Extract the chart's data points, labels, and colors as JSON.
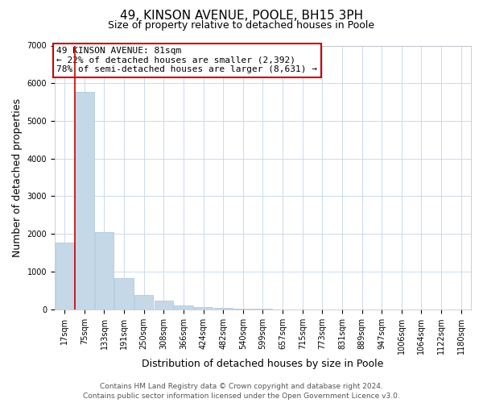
{
  "title": "49, KINSON AVENUE, POOLE, BH15 3PH",
  "subtitle": "Size of property relative to detached houses in Poole",
  "xlabel": "Distribution of detached houses by size in Poole",
  "ylabel": "Number of detached properties",
  "bar_labels": [
    "17sqm",
    "75sqm",
    "133sqm",
    "191sqm",
    "250sqm",
    "308sqm",
    "366sqm",
    "424sqm",
    "482sqm",
    "540sqm",
    "599sqm",
    "657sqm",
    "715sqm",
    "773sqm",
    "831sqm",
    "889sqm",
    "947sqm",
    "1006sqm",
    "1064sqm",
    "1122sqm",
    "1180sqm"
  ],
  "bar_heights": [
    1780,
    5760,
    2050,
    830,
    370,
    230,
    110,
    60,
    30,
    10,
    5,
    2,
    1,
    0,
    0,
    0,
    0,
    0,
    0,
    0,
    0
  ],
  "bar_color": "#c5d8e8",
  "bar_edge_color": "#a8c4d8",
  "vline_color": "#cc0000",
  "ylim": [
    0,
    7000
  ],
  "yticks": [
    0,
    1000,
    2000,
    3000,
    4000,
    5000,
    6000,
    7000
  ],
  "annotation_title": "49 KINSON AVENUE: 81sqm",
  "annotation_line1": "← 22% of detached houses are smaller (2,392)",
  "annotation_line2": "78% of semi-detached houses are larger (8,631) →",
  "annotation_box_color": "#ffffff",
  "annotation_box_edge": "#cc0000",
  "footer1": "Contains HM Land Registry data © Crown copyright and database right 2024.",
  "footer2": "Contains public sector information licensed under the Open Government Licence v3.0.",
  "bg_color": "#ffffff",
  "grid_color": "#ccdaeb",
  "title_fontsize": 11,
  "subtitle_fontsize": 9,
  "axis_label_fontsize": 9,
  "tick_fontsize": 7,
  "annotation_fontsize": 8,
  "footer_fontsize": 6.5
}
